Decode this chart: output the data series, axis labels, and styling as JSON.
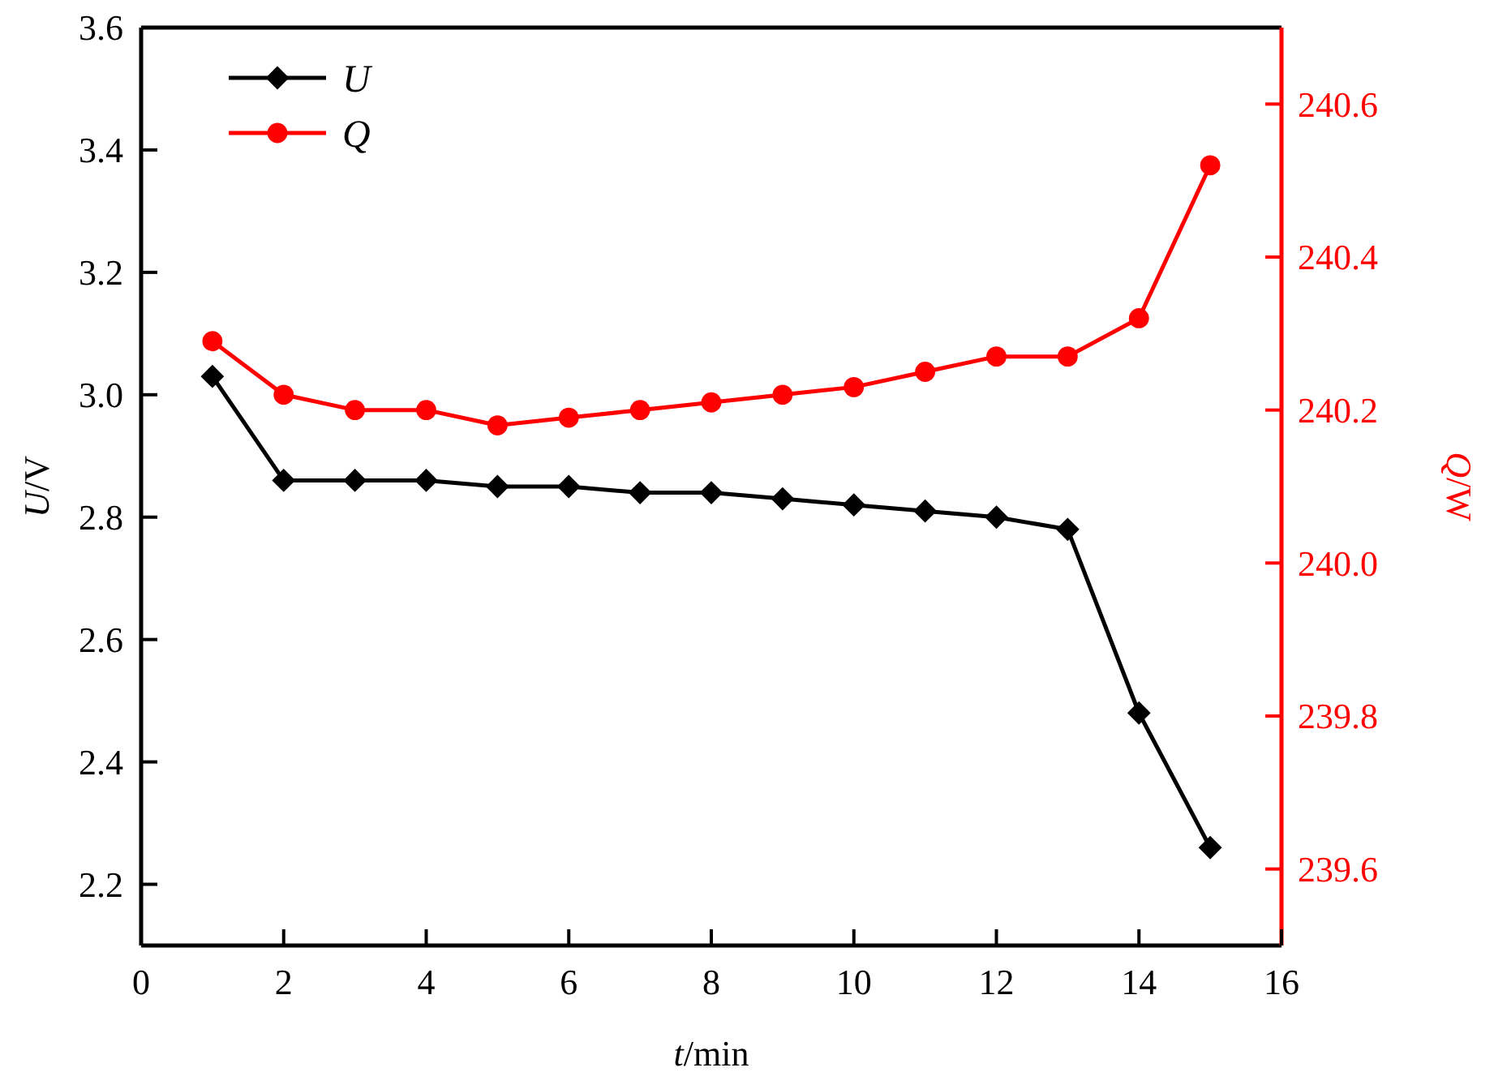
{
  "chart_data": {
    "type": "line",
    "xlabel": "t/min",
    "ylabel": "U/V",
    "y2label": "Q/W",
    "x": [
      1,
      2,
      3,
      4,
      5,
      6,
      7,
      8,
      9,
      10,
      11,
      12,
      13,
      14,
      15
    ],
    "xlim": [
      0,
      16
    ],
    "xticks": [
      0,
      2,
      4,
      6,
      8,
      10,
      12,
      14,
      16
    ],
    "ylim": [
      2.1,
      3.6
    ],
    "yticks": [
      2.2,
      2.4,
      2.6,
      2.8,
      {
        "value": 3,
        "label": "3.0"
      },
      3.2,
      3.4,
      3.6
    ],
    "y2lim": [
      239.5,
      240.7
    ],
    "y2ticks": [
      239.6,
      239.8,
      {
        "value": 240,
        "label": "240.0"
      },
      240.2,
      240.4,
      240.6
    ],
    "series": [
      {
        "name": "U",
        "color": "#000000",
        "marker": "diamond",
        "values": [
          3.03,
          2.86,
          2.86,
          2.86,
          2.85,
          2.85,
          2.84,
          2.84,
          2.83,
          2.82,
          2.81,
          2.8,
          2.78,
          2.48,
          2.26
        ]
      },
      {
        "name": "Q",
        "color": "#ff0000",
        "marker": "circle",
        "axis": "y2",
        "values": [
          240.29,
          240.22,
          240.2,
          240.2,
          240.18,
          240.19,
          240.2,
          240.21,
          240.22,
          240.23,
          240.25,
          240.27,
          240.27,
          240.32,
          240.52
        ]
      }
    ],
    "grid": false,
    "legend": "top left",
    "line_style": "solid"
  }
}
